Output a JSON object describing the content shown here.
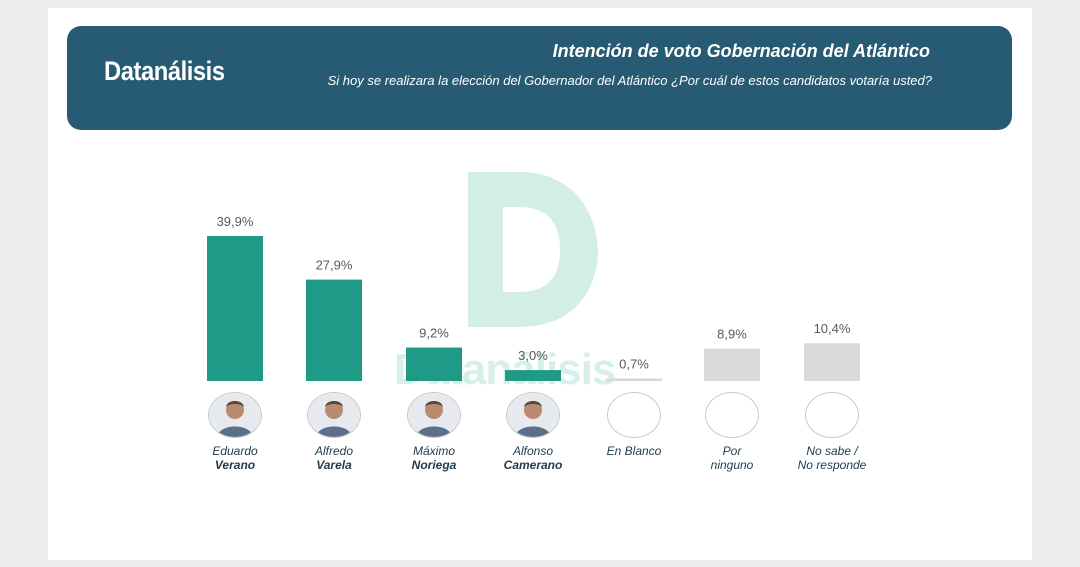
{
  "header": {
    "logo": "Datanálisis",
    "title": "Intención de voto Gobernación del Atlántico",
    "subtitle": "Si hoy se realizara la elección del Gobernador del Atlántico ¿Por cuál de estos candidatos votaría usted?"
  },
  "watermark": {
    "text": "Datanálisis"
  },
  "colors": {
    "candidate_bar": "#1f9a87",
    "other_bar": "#d9d9d9",
    "header_bg": "#275b73"
  },
  "candidates": [
    {
      "first": "Eduardo",
      "last": "Verano",
      "photo": true
    },
    {
      "first": "Alfredo",
      "last": "Varela",
      "photo": true
    },
    {
      "first": "Máximo",
      "last": "Noriega",
      "photo": true
    },
    {
      "first": "Alfonso",
      "last": "Camerano",
      "photo": true
    },
    {
      "first": "En Blanco",
      "last": "",
      "photo": false
    },
    {
      "first": "Por",
      "last": "ninguno",
      "photo": false,
      "last_plain": true
    },
    {
      "first": "No sabe /",
      "last": "No responde",
      "photo": false,
      "last_plain": true
    }
  ],
  "chart_data": {
    "type": "bar",
    "title": "Intención de voto Gobernación del Atlántico",
    "categories": [
      "Eduardo Verano",
      "Alfredo Varela",
      "Máximo Noriega",
      "Alfonso Camerano",
      "En Blanco",
      "Por ninguno",
      "No sabe / No responde"
    ],
    "values": [
      39.9,
      27.9,
      9.2,
      3.0,
      0.7,
      8.9,
      10.4
    ],
    "value_labels": [
      "39,9%",
      "27,9%",
      "9,2%",
      "3,0%",
      "0,7%",
      "8,9%",
      "10,4%"
    ],
    "bar_colors": [
      "#1f9a87",
      "#1f9a87",
      "#1f9a87",
      "#1f9a87",
      "#d9d9d9",
      "#d9d9d9",
      "#d9d9d9"
    ],
    "xlabel": "",
    "ylabel": "",
    "grid": false,
    "legend": "none"
  }
}
